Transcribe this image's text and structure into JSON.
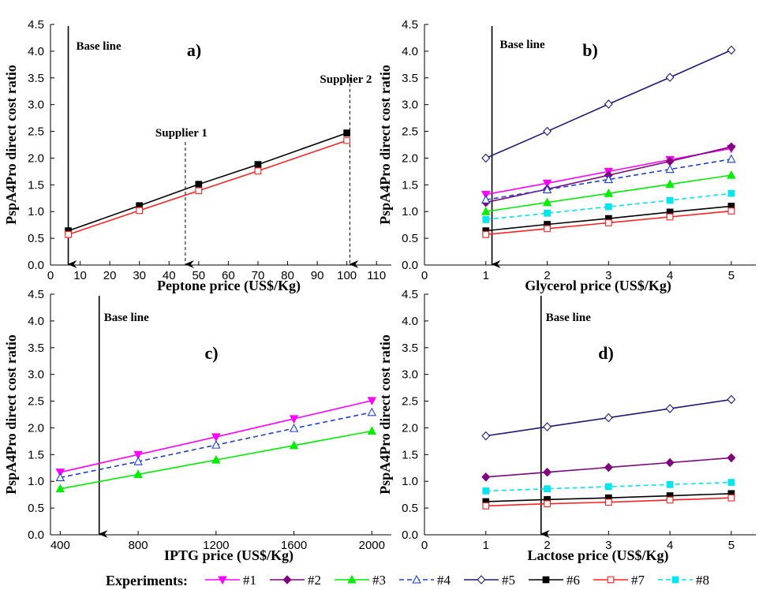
{
  "chart_data": [
    {
      "type": "line",
      "panel_label": "a)",
      "xlabel": "Peptone price (US$/Kg)",
      "ylabel": "PspA4Pro direct cost ratio",
      "xlim": [
        0,
        115
      ],
      "ylim": [
        0,
        4.5
      ],
      "x_ticks": [
        0,
        10,
        20,
        30,
        40,
        50,
        60,
        70,
        80,
        90,
        100,
        110
      ],
      "y_ticks": [
        0.0,
        0.5,
        1.0,
        1.5,
        2.0,
        2.5,
        3.0,
        3.5,
        4.0,
        4.5
      ],
      "grid": false,
      "series": [
        {
          "name": "#6",
          "x": [
            6,
            30,
            50,
            70,
            100
          ],
          "y": [
            0.64,
            1.11,
            1.51,
            1.88,
            2.47
          ]
        },
        {
          "name": "#7",
          "x": [
            6,
            30,
            50,
            70,
            100
          ],
          "y": [
            0.57,
            1.02,
            1.39,
            1.76,
            2.33
          ]
        }
      ],
      "annotations": [
        {
          "text": "Base line",
          "x": 6,
          "style": "solid-arrow"
        },
        {
          "text": "Supplier 1",
          "x": 45.5,
          "style": "dashed-arrow",
          "y_top": 2.3
        },
        {
          "text": "Supplier 2",
          "x": 101,
          "style": "dashed-arrow",
          "y_top": 3.5
        }
      ]
    },
    {
      "type": "line",
      "panel_label": "b)",
      "xlabel": "Glycerol price (US$/Kg)",
      "ylabel": "PspA4Pro direct cost ratio",
      "xlim": [
        0,
        5.4
      ],
      "ylim": [
        0,
        4.5
      ],
      "x_ticks": [
        0,
        1,
        2,
        3,
        4,
        5
      ],
      "y_ticks": [
        0.0,
        0.5,
        1.0,
        1.5,
        2.0,
        2.5,
        3.0,
        3.5,
        4.0,
        4.5
      ],
      "grid": false,
      "series": [
        {
          "name": "#1",
          "x": [
            1,
            2,
            3,
            4,
            5
          ],
          "y": [
            1.32,
            1.53,
            1.75,
            1.97,
            2.18
          ]
        },
        {
          "name": "#2",
          "x": [
            1,
            2,
            3,
            4,
            5
          ],
          "y": [
            1.17,
            1.42,
            1.68,
            1.94,
            2.21
          ]
        },
        {
          "name": "#3",
          "x": [
            1,
            2,
            3,
            4,
            5
          ],
          "y": [
            1.0,
            1.17,
            1.34,
            1.51,
            1.68
          ]
        },
        {
          "name": "#4",
          "x": [
            1,
            2,
            3,
            4,
            5
          ],
          "y": [
            1.22,
            1.41,
            1.6,
            1.79,
            1.98
          ]
        },
        {
          "name": "#5",
          "x": [
            1,
            2,
            3,
            4,
            5
          ],
          "y": [
            2.0,
            2.5,
            3.01,
            3.51,
            4.02
          ]
        },
        {
          "name": "#6",
          "x": [
            1,
            2,
            3,
            4,
            5
          ],
          "y": [
            0.64,
            0.76,
            0.87,
            0.99,
            1.1
          ]
        },
        {
          "name": "#7",
          "x": [
            1,
            2,
            3,
            4,
            5
          ],
          "y": [
            0.57,
            0.68,
            0.79,
            0.9,
            1.01
          ]
        },
        {
          "name": "#8",
          "x": [
            1,
            2,
            3,
            4,
            5
          ],
          "y": [
            0.85,
            0.97,
            1.09,
            1.21,
            1.34
          ]
        }
      ],
      "annotations": [
        {
          "text": "Base line",
          "x": 1.1,
          "style": "solid-arrow"
        }
      ]
    },
    {
      "type": "line",
      "panel_label": "c)",
      "xlabel": "IPTG price (US$/Kg)",
      "ylabel": "PspA4Pro direct cost ratio",
      "xlim": [
        350,
        2100
      ],
      "ylim": [
        0,
        4.5
      ],
      "x_ticks": [
        400,
        800,
        1200,
        1600,
        2000
      ],
      "y_ticks": [
        0.0,
        0.5,
        1.0,
        1.5,
        2.0,
        2.5,
        3.0,
        3.5,
        4.0,
        4.5
      ],
      "grid": false,
      "series": [
        {
          "name": "#1",
          "x": [
            400,
            800,
            1200,
            1600,
            2000
          ],
          "y": [
            1.17,
            1.5,
            1.83,
            2.17,
            2.51
          ]
        },
        {
          "name": "#3",
          "x": [
            400,
            800,
            1200,
            1600,
            2000
          ],
          "y": [
            0.86,
            1.13,
            1.4,
            1.67,
            1.94
          ]
        },
        {
          "name": "#4",
          "x": [
            400,
            800,
            1200,
            1600,
            2000
          ],
          "y": [
            1.07,
            1.37,
            1.68,
            1.99,
            2.29
          ]
        }
      ],
      "annotations": [
        {
          "text": "Base line",
          "x": 600,
          "style": "solid-arrow"
        }
      ]
    },
    {
      "type": "line",
      "panel_label": "d)",
      "xlabel": "Lactose price (US$/Kg)",
      "ylabel": "PspA4Pro direct cost ratio",
      "xlim": [
        0,
        5.4
      ],
      "ylim": [
        0,
        4.5
      ],
      "x_ticks": [
        0,
        1,
        2,
        3,
        4,
        5
      ],
      "y_ticks": [
        0.0,
        0.5,
        1.0,
        1.5,
        2.0,
        2.5,
        3.0,
        3.5,
        4.0,
        4.5
      ],
      "grid": false,
      "series": [
        {
          "name": "#2",
          "x": [
            1,
            2,
            3,
            4,
            5
          ],
          "y": [
            1.08,
            1.17,
            1.26,
            1.35,
            1.44
          ]
        },
        {
          "name": "#5",
          "x": [
            1,
            2,
            3,
            4,
            5
          ],
          "y": [
            1.85,
            2.02,
            2.19,
            2.36,
            2.53
          ]
        },
        {
          "name": "#6",
          "x": [
            1,
            2,
            3,
            4,
            5
          ],
          "y": [
            0.62,
            0.66,
            0.69,
            0.73,
            0.77
          ]
        },
        {
          "name": "#7",
          "x": [
            1,
            2,
            3,
            4,
            5
          ],
          "y": [
            0.54,
            0.58,
            0.61,
            0.65,
            0.69
          ]
        },
        {
          "name": "#8",
          "x": [
            1,
            2,
            3,
            4,
            5
          ],
          "y": [
            0.82,
            0.86,
            0.9,
            0.94,
            0.98
          ]
        }
      ],
      "annotations": [
        {
          "text": "Base line",
          "x": 1.9,
          "style": "solid-arrow"
        }
      ]
    }
  ],
  "series_styles": {
    "#1": {
      "color": "#ff00ff",
      "dash": "solid",
      "marker": "triangle-down",
      "filled": true
    },
    "#2": {
      "color": "#800080",
      "dash": "solid",
      "marker": "diamond",
      "filled": true
    },
    "#3": {
      "color": "#00ee00",
      "dash": "solid",
      "marker": "triangle-up",
      "filled": true
    },
    "#4": {
      "color": "#1f3fcf",
      "dash": "dashed",
      "marker": "triangle-up",
      "filled": false
    },
    "#5": {
      "color": "#1a1a7a",
      "dash": "solid",
      "marker": "diamond",
      "filled": false
    },
    "#6": {
      "color": "#000000",
      "dash": "solid",
      "marker": "square",
      "filled": true
    },
    "#7": {
      "color": "#ff2020",
      "dash": "solid",
      "marker": "square",
      "filled": false
    },
    "#8": {
      "color": "#00e5ee",
      "dash": "dashed",
      "marker": "square",
      "filled": true
    }
  },
  "legend": {
    "title": "Experiments",
    "entries": [
      "#1",
      "#2",
      "#3",
      "#4",
      "#5",
      "#6",
      "#7",
      "#8"
    ],
    "placement": "bottom"
  }
}
